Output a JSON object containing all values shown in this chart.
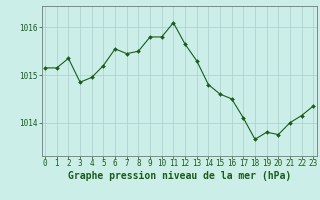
{
  "x": [
    0,
    1,
    2,
    3,
    4,
    5,
    6,
    7,
    8,
    9,
    10,
    11,
    12,
    13,
    14,
    15,
    16,
    17,
    18,
    19,
    20,
    21,
    22,
    23
  ],
  "y": [
    1015.15,
    1015.15,
    1015.35,
    1014.85,
    1014.95,
    1015.2,
    1015.55,
    1015.45,
    1015.5,
    1015.8,
    1015.8,
    1016.1,
    1015.65,
    1015.3,
    1014.8,
    1014.6,
    1014.5,
    1014.1,
    1013.65,
    1013.8,
    1013.75,
    1014.0,
    1014.15,
    1014.35
  ],
  "line_color": "#1a5c1a",
  "marker_color": "#1a5c1a",
  "bg_color": "#cceee8",
  "grid_color": "#aacccc",
  "title": "Graphe pression niveau de la mer (hPa)",
  "ylim": [
    1013.3,
    1016.45
  ],
  "yticks": [
    1014,
    1015,
    1016
  ],
  "xlim": [
    -0.3,
    23.3
  ],
  "xtick_labels": [
    "0",
    "1",
    "2",
    "3",
    "4",
    "5",
    "6",
    "7",
    "8",
    "9",
    "10",
    "11",
    "12",
    "13",
    "14",
    "15",
    "16",
    "17",
    "18",
    "19",
    "20",
    "21",
    "22",
    "23"
  ],
  "title_fontsize": 7.0,
  "tick_fontsize": 5.5,
  "spine_color": "#777777"
}
